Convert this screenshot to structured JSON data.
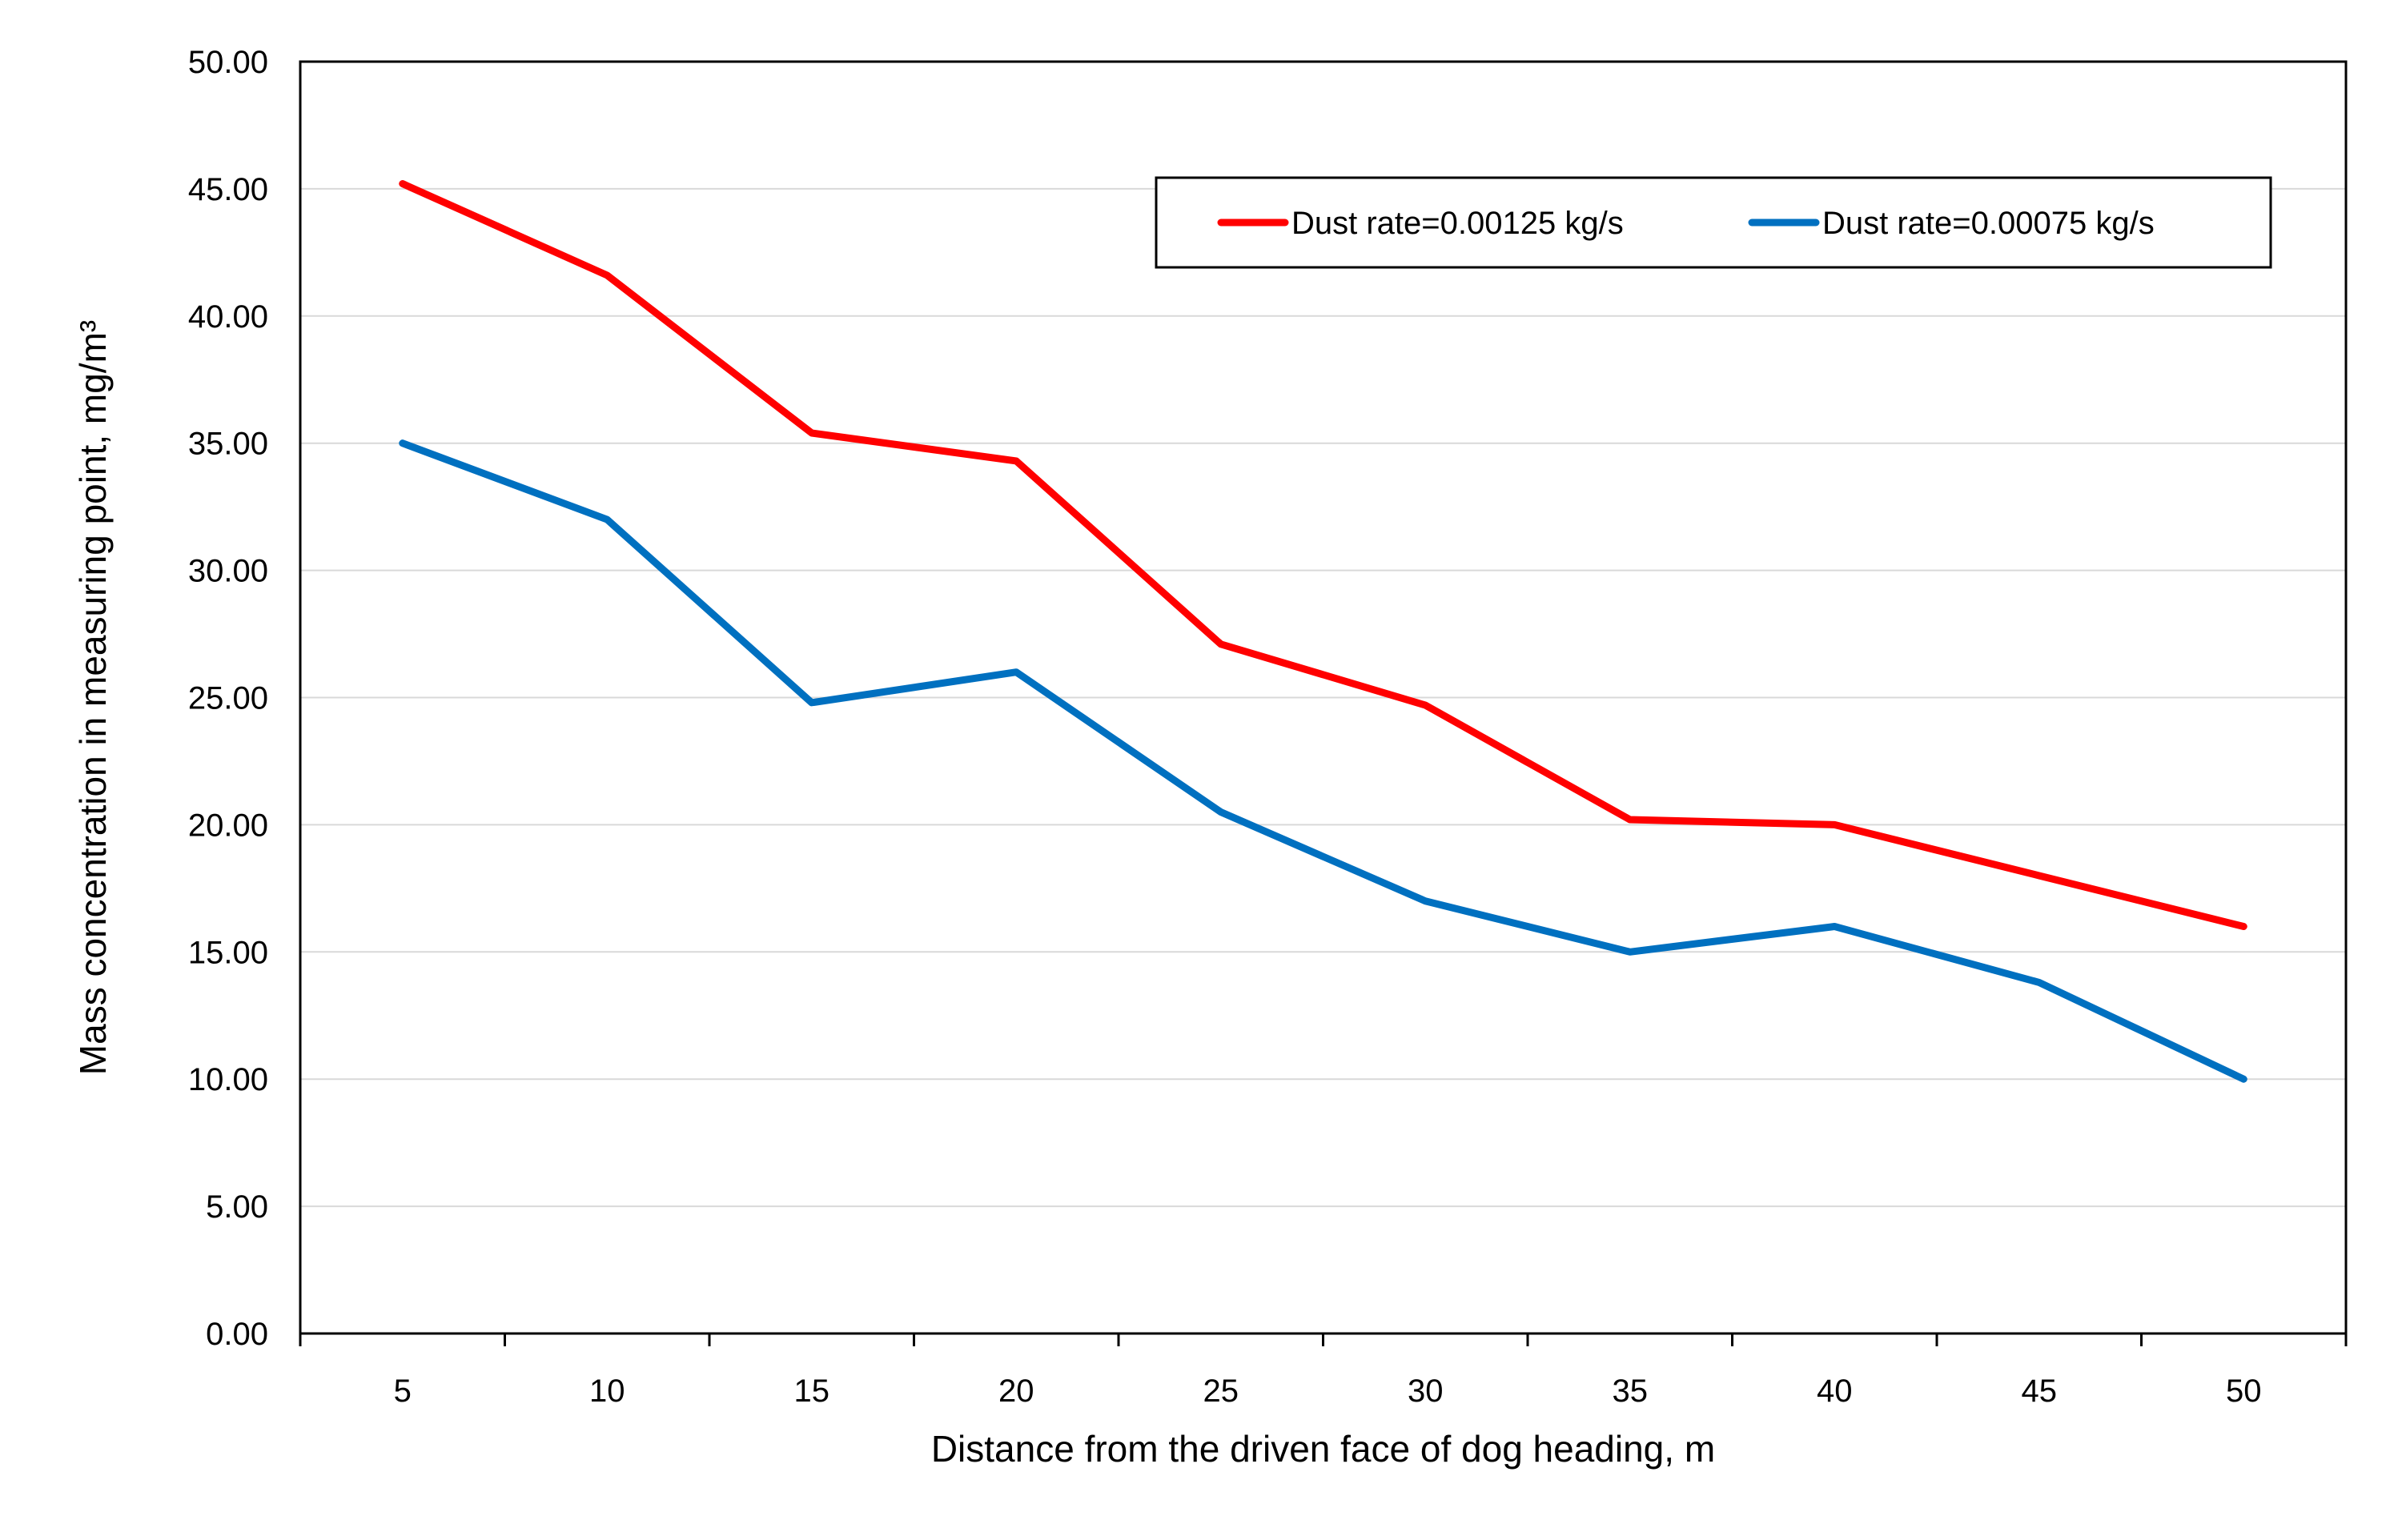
{
  "chart_data": {
    "type": "line",
    "title": "",
    "xlabel": "Distance from the driven face of dog heading, m",
    "ylabel": "Mass concentration in measuring point, mg/m³",
    "categories": [
      "5",
      "10",
      "15",
      "20",
      "25",
      "30",
      "35",
      "40",
      "45",
      "50"
    ],
    "ylim": [
      0,
      50
    ],
    "ytick_labels": [
      "0.00",
      "5.00",
      "10.00",
      "15.00",
      "20.00",
      "25.00",
      "30.00",
      "35.00",
      "40.00",
      "45.00",
      "50.00"
    ],
    "grid": true,
    "legend_position": "top-right",
    "series": [
      {
        "name": "Dust rate=0.00125 kg/s",
        "color": "#ff0000",
        "values": [
          45.2,
          41.6,
          35.4,
          34.3,
          27.1,
          24.7,
          20.2,
          20.0,
          18.0,
          16.0
        ]
      },
      {
        "name": "Dust rate=0.00075 kg/s",
        "color": "#0070c0",
        "values": [
          35.0,
          32.0,
          24.8,
          26.0,
          20.5,
          17.0,
          15.0,
          16.0,
          13.8,
          10.0
        ]
      }
    ]
  }
}
